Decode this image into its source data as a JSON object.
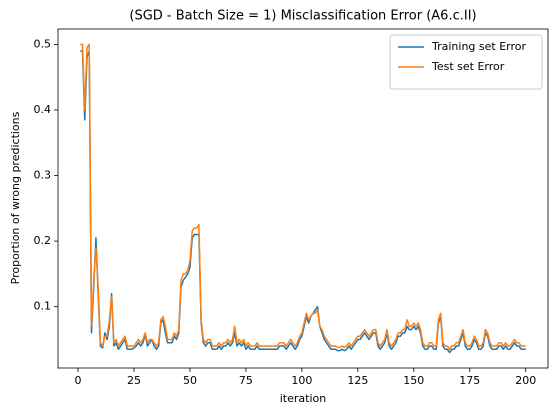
{
  "chart_data": {
    "type": "line",
    "title": "(SGD - Batch Size = 1) Misclassification Error (A6.c.II)",
    "xlabel": "iteration",
    "ylabel": "Proportion of wrong predictions",
    "x": [
      1,
      2,
      3,
      4,
      5,
      6,
      7,
      8,
      9,
      10,
      11,
      12,
      13,
      14,
      15,
      16,
      17,
      18,
      19,
      20,
      21,
      22,
      23,
      24,
      25,
      26,
      27,
      28,
      29,
      30,
      31,
      32,
      33,
      34,
      35,
      36,
      37,
      38,
      39,
      40,
      41,
      42,
      43,
      44,
      45,
      46,
      47,
      48,
      49,
      50,
      51,
      52,
      53,
      54,
      55,
      56,
      57,
      58,
      59,
      60,
      61,
      62,
      63,
      64,
      65,
      66,
      67,
      68,
      69,
      70,
      71,
      72,
      73,
      74,
      75,
      76,
      77,
      78,
      79,
      80,
      81,
      82,
      83,
      84,
      85,
      86,
      87,
      88,
      89,
      90,
      91,
      92,
      93,
      94,
      95,
      96,
      97,
      98,
      99,
      100,
      101,
      102,
      103,
      104,
      105,
      106,
      107,
      108,
      109,
      110,
      111,
      112,
      113,
      114,
      115,
      116,
      117,
      118,
      119,
      120,
      121,
      122,
      123,
      124,
      125,
      126,
      127,
      128,
      129,
      130,
      131,
      132,
      133,
      134,
      135,
      136,
      137,
      138,
      139,
      140,
      141,
      142,
      143,
      144,
      145,
      146,
      147,
      148,
      149,
      150,
      151,
      152,
      153,
      154,
      155,
      156,
      157,
      158,
      159,
      160,
      161,
      162,
      163,
      164,
      165,
      166,
      167,
      168,
      169,
      170,
      171,
      172,
      173,
      174,
      175,
      176,
      177,
      178,
      179,
      180,
      181,
      182,
      183,
      184,
      185,
      186,
      187,
      188,
      189,
      190,
      191,
      192,
      193,
      194,
      195,
      196,
      197,
      198,
      199,
      200
    ],
    "series": [
      {
        "name": "Training set Error",
        "color": "#1f77b4",
        "values": [
          0.49,
          0.49,
          0.385,
          0.48,
          0.49,
          0.06,
          0.13,
          0.205,
          0.12,
          0.04,
          0.037,
          0.06,
          0.05,
          0.07,
          0.12,
          0.04,
          0.045,
          0.035,
          0.04,
          0.045,
          0.05,
          0.035,
          0.035,
          0.035,
          0.037,
          0.04,
          0.045,
          0.04,
          0.045,
          0.058,
          0.04,
          0.045,
          0.05,
          0.04,
          0.035,
          0.04,
          0.075,
          0.08,
          0.06,
          0.045,
          0.045,
          0.045,
          0.055,
          0.05,
          0.06,
          0.13,
          0.14,
          0.145,
          0.15,
          0.16,
          0.205,
          0.21,
          0.21,
          0.21,
          0.075,
          0.045,
          0.04,
          0.045,
          0.045,
          0.035,
          0.035,
          0.035,
          0.04,
          0.035,
          0.04,
          0.04,
          0.045,
          0.04,
          0.045,
          0.06,
          0.04,
          0.045,
          0.04,
          0.045,
          0.035,
          0.04,
          0.035,
          0.035,
          0.035,
          0.04,
          0.035,
          0.035,
          0.035,
          0.035,
          0.035,
          0.035,
          0.035,
          0.035,
          0.035,
          0.04,
          0.04,
          0.04,
          0.035,
          0.04,
          0.045,
          0.04,
          0.035,
          0.04,
          0.05,
          0.055,
          0.07,
          0.085,
          0.075,
          0.085,
          0.09,
          0.095,
          0.1,
          0.07,
          0.06,
          0.05,
          0.045,
          0.04,
          0.035,
          0.035,
          0.035,
          0.033,
          0.033,
          0.035,
          0.033,
          0.035,
          0.04,
          0.035,
          0.04,
          0.045,
          0.05,
          0.05,
          0.055,
          0.06,
          0.055,
          0.05,
          0.055,
          0.06,
          0.06,
          0.04,
          0.035,
          0.04,
          0.045,
          0.06,
          0.04,
          0.035,
          0.04,
          0.045,
          0.055,
          0.055,
          0.06,
          0.06,
          0.07,
          0.065,
          0.065,
          0.07,
          0.065,
          0.07,
          0.06,
          0.04,
          0.035,
          0.035,
          0.04,
          0.04,
          0.035,
          0.035,
          0.075,
          0.085,
          0.04,
          0.035,
          0.035,
          0.03,
          0.035,
          0.035,
          0.04,
          0.04,
          0.05,
          0.06,
          0.04,
          0.035,
          0.035,
          0.04,
          0.05,
          0.045,
          0.035,
          0.035,
          0.04,
          0.06,
          0.055,
          0.04,
          0.035,
          0.035,
          0.035,
          0.04,
          0.04,
          0.035,
          0.04,
          0.035,
          0.035,
          0.04,
          0.045,
          0.04,
          0.04,
          0.035,
          0.035,
          0.035
        ]
      },
      {
        "name": "Test set Error",
        "color": "#ff7f0e",
        "values": [
          0.5,
          0.5,
          0.4,
          0.495,
          0.5,
          0.07,
          0.14,
          0.19,
          0.13,
          0.045,
          0.04,
          0.055,
          0.055,
          0.08,
          0.115,
          0.045,
          0.05,
          0.04,
          0.045,
          0.05,
          0.055,
          0.04,
          0.04,
          0.04,
          0.04,
          0.045,
          0.05,
          0.045,
          0.05,
          0.06,
          0.045,
          0.05,
          0.05,
          0.045,
          0.04,
          0.045,
          0.08,
          0.085,
          0.07,
          0.05,
          0.05,
          0.05,
          0.06,
          0.055,
          0.065,
          0.14,
          0.15,
          0.15,
          0.155,
          0.17,
          0.215,
          0.22,
          0.22,
          0.225,
          0.08,
          0.05,
          0.045,
          0.05,
          0.05,
          0.04,
          0.04,
          0.04,
          0.045,
          0.04,
          0.045,
          0.045,
          0.05,
          0.045,
          0.05,
          0.07,
          0.045,
          0.05,
          0.045,
          0.05,
          0.04,
          0.045,
          0.04,
          0.04,
          0.04,
          0.045,
          0.04,
          0.04,
          0.04,
          0.04,
          0.04,
          0.04,
          0.04,
          0.04,
          0.04,
          0.045,
          0.045,
          0.045,
          0.04,
          0.045,
          0.05,
          0.045,
          0.04,
          0.045,
          0.055,
          0.06,
          0.075,
          0.09,
          0.08,
          0.085,
          0.09,
          0.09,
          0.095,
          0.07,
          0.065,
          0.055,
          0.05,
          0.045,
          0.04,
          0.04,
          0.04,
          0.038,
          0.038,
          0.04,
          0.038,
          0.04,
          0.045,
          0.04,
          0.045,
          0.05,
          0.055,
          0.055,
          0.06,
          0.065,
          0.06,
          0.055,
          0.06,
          0.065,
          0.065,
          0.045,
          0.04,
          0.045,
          0.05,
          0.065,
          0.045,
          0.04,
          0.045,
          0.05,
          0.06,
          0.06,
          0.065,
          0.065,
          0.08,
          0.07,
          0.07,
          0.075,
          0.07,
          0.075,
          0.065,
          0.045,
          0.04,
          0.04,
          0.045,
          0.045,
          0.04,
          0.04,
          0.08,
          0.09,
          0.045,
          0.04,
          0.04,
          0.035,
          0.04,
          0.04,
          0.045,
          0.045,
          0.055,
          0.065,
          0.045,
          0.04,
          0.04,
          0.045,
          0.055,
          0.05,
          0.04,
          0.04,
          0.045,
          0.065,
          0.06,
          0.045,
          0.04,
          0.04,
          0.04,
          0.045,
          0.045,
          0.04,
          0.045,
          0.04,
          0.04,
          0.045,
          0.05,
          0.045,
          0.045,
          0.04,
          0.04,
          0.04
        ]
      }
    ],
    "xlim": [
      -8.95,
      209.95
    ],
    "xticks": [
      0,
      25,
      50,
      75,
      100,
      125,
      150,
      175,
      200
    ],
    "ylim": [
      0.0065,
      0.5235
    ],
    "yticks": [
      0.1,
      0.2,
      0.3,
      0.4,
      0.5
    ],
    "legend": "upper right",
    "grid": false
  }
}
